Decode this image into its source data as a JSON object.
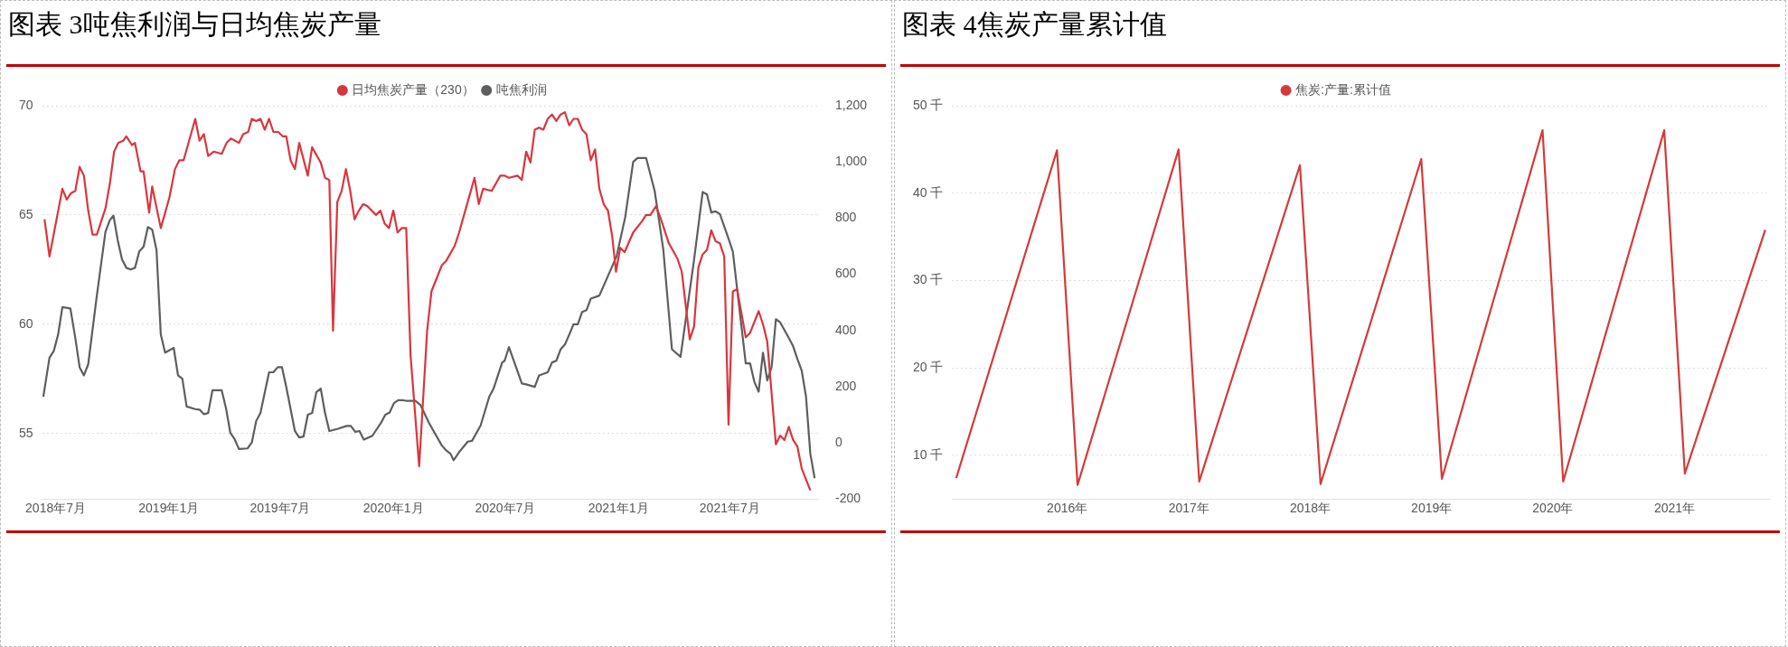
{
  "chart_data": [
    {
      "type": "line",
      "title": "图表 3吨焦利润与日均焦炭产量",
      "xlim": [
        "2018-06-09",
        "2021-11-23"
      ],
      "xticks": [
        {
          "value": "2018-07",
          "label": "2018年7月"
        },
        {
          "value": "2019-01",
          "label": "2019年1月"
        },
        {
          "value": "2019-07",
          "label": "2019年7月"
        },
        {
          "value": "2020-01",
          "label": "2020年1月"
        },
        {
          "value": "2020-07",
          "label": "2020年7月"
        },
        {
          "value": "2021-01",
          "label": "2021年1月"
        },
        {
          "value": "2021-07",
          "label": "2021年7月"
        }
      ],
      "ylim": [
        52,
        70
      ],
      "yticks": [
        55,
        60,
        65,
        70
      ],
      "y2lim": [
        -200,
        1200
      ],
      "y2ticks": [
        -200,
        0,
        200,
        400,
        600,
        800,
        {
          "value": 1000,
          "label": "1,000"
        },
        {
          "value": 1200,
          "label": "1,200"
        }
      ],
      "grid": "y",
      "legend": "top",
      "series": [
        {
          "name": "日均焦炭产量（230）",
          "color": "#d9363e",
          "x": [
            "2018-06-13",
            "2018-06-21",
            "2018-07-12",
            "2018-07-19",
            "2018-07-26",
            "2018-08-02",
            "2018-08-09",
            "2018-08-16",
            "2018-08-23",
            "2018-08-30",
            "2018-09-06",
            "2018-09-20",
            "2018-09-27",
            "2018-10-04",
            "2018-10-11",
            "2018-10-19",
            "2018-10-24",
            "2018-11-02",
            "2018-11-07",
            "2018-11-16",
            "2018-11-21",
            "2018-11-30",
            "2018-12-05",
            "2018-12-19",
            "2019-01-02",
            "2019-01-11",
            "2019-01-18",
            "2019-01-25",
            "2019-02-13",
            "2019-02-20",
            "2019-02-27",
            "2019-03-06",
            "2019-03-15",
            "2019-03-28",
            "2019-04-05",
            "2019-04-12",
            "2019-04-25",
            "2019-05-02",
            "2019-05-10",
            "2019-05-16",
            "2019-05-23",
            "2019-05-30",
            "2019-06-06",
            "2019-06-13",
            "2019-06-20",
            "2019-06-28",
            "2019-07-05",
            "2019-07-11",
            "2019-07-18",
            "2019-07-25",
            "2019-08-01",
            "2019-08-15",
            "2019-08-22",
            "2019-09-05",
            "2019-09-12",
            "2019-09-19",
            "2019-09-25",
            "2019-10-02",
            "2019-10-09",
            "2019-10-16",
            "2019-10-23",
            "2019-10-30",
            "2019-11-06",
            "2019-11-13",
            "2019-11-20",
            "2019-12-04",
            "2019-12-11",
            "2019-12-18",
            "2019-12-25",
            "2020-01-01",
            "2020-01-08",
            "2020-01-15",
            "2020-01-22",
            "2020-01-29",
            "2020-02-12",
            "2020-02-25",
            "2020-03-03",
            "2020-03-20",
            "2020-03-27",
            "2020-04-10",
            "2020-04-17",
            "2020-05-01",
            "2020-05-12",
            "2020-05-19",
            "2020-05-26",
            "2020-06-09",
            "2020-06-23",
            "2020-06-30",
            "2020-07-07",
            "2020-07-21",
            "2020-07-28",
            "2020-08-04",
            "2020-08-11",
            "2020-08-18",
            "2020-08-25",
            "2020-09-01",
            "2020-09-08",
            "2020-09-15",
            "2020-09-22",
            "2020-09-29",
            "2020-10-06",
            "2020-10-13",
            "2020-10-20",
            "2020-10-27",
            "2020-11-03",
            "2020-11-10",
            "2020-11-17",
            "2020-11-24",
            "2020-12-01",
            "2020-12-08",
            "2020-12-15",
            "2020-12-22",
            "2020-12-28",
            "2021-01-04",
            "2021-01-11",
            "2021-01-25",
            "2021-02-08",
            "2021-02-15",
            "2021-02-22",
            "2021-03-03",
            "2021-03-10",
            "2021-03-24",
            "2021-04-07",
            "2021-04-14",
            "2021-04-27",
            "2021-05-04",
            "2021-05-11",
            "2021-05-18",
            "2021-05-25",
            "2021-06-01",
            "2021-06-08",
            "2021-06-15",
            "2021-06-22",
            "2021-06-29",
            "2021-07-06",
            "2021-07-13",
            "2021-07-27",
            "2021-08-03",
            "2021-08-17",
            "2021-08-24",
            "2021-08-31",
            "2021-09-14",
            "2021-09-21",
            "2021-09-28",
            "2021-10-05",
            "2021-10-12",
            "2021-10-19",
            "2021-10-26",
            "2021-11-09"
          ],
          "values": [
            64.8,
            63.1,
            66.2,
            65.7,
            66.0,
            66.1,
            67.2,
            66.8,
            65.2,
            64.1,
            64.1,
            65.3,
            66.4,
            67.9,
            68.3,
            68.4,
            68.6,
            68.2,
            68.3,
            67.0,
            67.0,
            65.1,
            66.3,
            64.4,
            65.8,
            67.1,
            67.5,
            67.5,
            69.4,
            68.4,
            68.7,
            67.7,
            67.9,
            67.8,
            68.3,
            68.5,
            68.3,
            68.7,
            68.8,
            69.4,
            69.3,
            69.4,
            68.9,
            69.4,
            68.8,
            68.8,
            68.6,
            68.6,
            67.5,
            67.1,
            68.3,
            66.8,
            68.1,
            67.4,
            66.7,
            66.6,
            59.7,
            65.6,
            66.1,
            67.1,
            66.1,
            64.8,
            65.2,
            65.5,
            65.4,
            65.0,
            65.2,
            64.6,
            64.4,
            65.2,
            64.2,
            64.4,
            64.4,
            58.6,
            53.5,
            59.7,
            61.5,
            62.7,
            62.9,
            63.6,
            64.2,
            65.6,
            66.7,
            65.5,
            66.2,
            66.1,
            66.8,
            66.8,
            66.7,
            66.8,
            66.6,
            67.9,
            67.4,
            68.9,
            69.0,
            68.9,
            69.4,
            69.6,
            69.3,
            69.6,
            69.7,
            69.1,
            69.4,
            69.4,
            68.9,
            68.7,
            67.5,
            68.0,
            66.2,
            65.5,
            65.2,
            64.0,
            62.4,
            63.5,
            63.3,
            64.2,
            64.7,
            65.0,
            65.0,
            65.4,
            64.9,
            63.7,
            63.0,
            62.4,
            59.3,
            59.9,
            62.6,
            63.2,
            63.4,
            64.3,
            63.8,
            63.7,
            63.1,
            55.4,
            61.5,
            61.6,
            59.4,
            59.6,
            60.6,
            60.0,
            59.2,
            54.5,
            54.9,
            54.7,
            55.3,
            54.7,
            54.4,
            53.4,
            52.4
          ]
        },
        {
          "name": "吨焦利润",
          "color": "#5e5e5e",
          "axis": "y2",
          "x": [
            "2018-06-11",
            "2018-06-21",
            "2018-06-28",
            "2018-07-05",
            "2018-07-12",
            "2018-07-25",
            "2018-08-02",
            "2018-08-09",
            "2018-08-16",
            "2018-08-23",
            "2018-09-06",
            "2018-09-20",
            "2018-09-27",
            "2018-10-03",
            "2018-10-10",
            "2018-10-17",
            "2018-10-24",
            "2018-10-31",
            "2018-11-07",
            "2018-11-14",
            "2018-11-21",
            "2018-11-28",
            "2018-12-05",
            "2018-12-12",
            "2018-12-19",
            "2018-12-26",
            "2019-01-09",
            "2019-01-16",
            "2019-01-23",
            "2019-01-30",
            "2019-02-13",
            "2019-02-20",
            "2019-02-27",
            "2019-03-06",
            "2019-03-13",
            "2019-03-28",
            "2019-04-04",
            "2019-04-11",
            "2019-04-18",
            "2019-04-25",
            "2019-05-09",
            "2019-05-16",
            "2019-05-23",
            "2019-05-30",
            "2019-06-13",
            "2019-06-20",
            "2019-06-27",
            "2019-07-04",
            "2019-07-11",
            "2019-07-25",
            "2019-08-01",
            "2019-08-08",
            "2019-08-15",
            "2019-08-22",
            "2019-08-29",
            "2019-09-05",
            "2019-09-12",
            "2019-09-19",
            "2019-10-03",
            "2019-10-17",
            "2019-10-24",
            "2019-10-31",
            "2019-11-07",
            "2019-11-14",
            "2019-11-28",
            "2019-12-12",
            "2019-12-19",
            "2019-12-26",
            "2020-01-02",
            "2020-01-09",
            "2020-01-16",
            "2020-01-23",
            "2020-02-06",
            "2020-02-14",
            "2020-02-28",
            "2020-03-20",
            "2020-03-27",
            "2020-04-03",
            "2020-04-08",
            "2020-04-17",
            "2020-05-01",
            "2020-05-08",
            "2020-05-22",
            "2020-06-05",
            "2020-06-12",
            "2020-06-26",
            "2020-06-30",
            "2020-07-07",
            "2020-07-28",
            "2020-08-04",
            "2020-08-18",
            "2020-08-25",
            "2020-09-08",
            "2020-09-15",
            "2020-09-22",
            "2020-09-29",
            "2020-10-06",
            "2020-10-13",
            "2020-10-20",
            "2020-10-27",
            "2020-11-03",
            "2020-11-10",
            "2020-11-17",
            "2020-12-01",
            "2020-12-15",
            "2020-12-29",
            "2021-01-12",
            "2021-01-25",
            "2021-02-01",
            "2021-02-15",
            "2021-03-01",
            "2021-03-15",
            "2021-03-29",
            "2021-04-12",
            "2021-05-04",
            "2021-05-18",
            "2021-05-25",
            "2021-06-01",
            "2021-06-08",
            "2021-06-15",
            "2021-06-29",
            "2021-07-06",
            "2021-07-13",
            "2021-07-27",
            "2021-08-03",
            "2021-08-10",
            "2021-08-17",
            "2021-08-24",
            "2021-08-31",
            "2021-09-07",
            "2021-09-14",
            "2021-09-21",
            "2021-10-05",
            "2021-10-12",
            "2021-10-19",
            "2021-10-26",
            "2021-11-02",
            "2021-11-09",
            "2021-11-16"
          ],
          "values": [
            164,
            303,
            327,
            385,
            483,
            478,
            373,
            269,
            240,
            280,
            524,
            751,
            792,
            809,
            721,
            652,
            623,
            617,
            623,
            681,
            698,
            768,
            759,
            687,
            385,
            321,
            338,
            240,
            228,
            129,
            120,
            118,
            102,
            106,
            187,
            187,
            123,
            36,
            13,
            -22,
            -20,
            1,
            77,
            106,
            251,
            251,
            269,
            269,
            199,
            42,
            19,
            22,
            100,
            106,
            181,
            193,
            106,
            42,
            50,
            60,
            60,
            39,
            42,
            11,
            25,
            71,
            100,
            108,
            141,
            152,
            152,
            149,
            149,
            135,
            71,
            -10,
            -27,
            -39,
            -62,
            -33,
            4,
            7,
            62,
            164,
            193,
            286,
            292,
            341,
            211,
            208,
            199,
            240,
            251,
            286,
            292,
            333,
            350,
            385,
            422,
            422,
            466,
            472,
            513,
            524,
            594,
            664,
            803,
            1000,
            1014,
            1014,
            896,
            687,
            333,
            306,
            652,
            893,
            884,
            820,
            824,
            814,
            727,
            681,
            547,
            283,
            283,
            217,
            182,
            321,
            222,
            269,
            440,
            429,
            373,
            344,
            298,
            257,
            164,
            -39,
            -126
          ]
        }
      ]
    },
    {
      "type": "line",
      "title": "图表 4焦炭产量累计值",
      "xlim": [
        "2015-01-20",
        "2021-10-15"
      ],
      "xticks": [
        {
          "value": "2016",
          "label": "2016年"
        },
        {
          "value": "2017",
          "label": "2017年"
        },
        {
          "value": "2018",
          "label": "2018年"
        },
        {
          "value": "2019",
          "label": "2019年"
        },
        {
          "value": "2020",
          "label": "2020年"
        },
        {
          "value": "2021",
          "label": "2021年"
        }
      ],
      "ylim": [
        5,
        50
      ],
      "yticks": [
        {
          "value": 10,
          "label": "10 千"
        },
        {
          "value": 20,
          "label": "20 千"
        },
        {
          "value": 30,
          "label": "30 千"
        },
        {
          "value": 40,
          "label": "40 千"
        },
        {
          "value": 50,
          "label": "50 千"
        }
      ],
      "grid": "y",
      "legend": "top",
      "series": [
        {
          "name": "焦炭:产量:累计值",
          "color": "#d43a3a",
          "x": [
            "2015-02",
            "2015-12",
            "2016-02",
            "2016-12",
            "2017-02",
            "2017-12",
            "2018-02",
            "2018-12",
            "2019-02",
            "2019-12",
            "2020-02",
            "2020-12",
            "2021-02",
            "2021-10"
          ],
          "values": [
            7.4,
            44.9,
            6.6,
            45.0,
            7.0,
            43.2,
            6.7,
            43.9,
            7.3,
            47.2,
            7.0,
            47.2,
            7.9,
            35.8
          ]
        }
      ]
    }
  ]
}
